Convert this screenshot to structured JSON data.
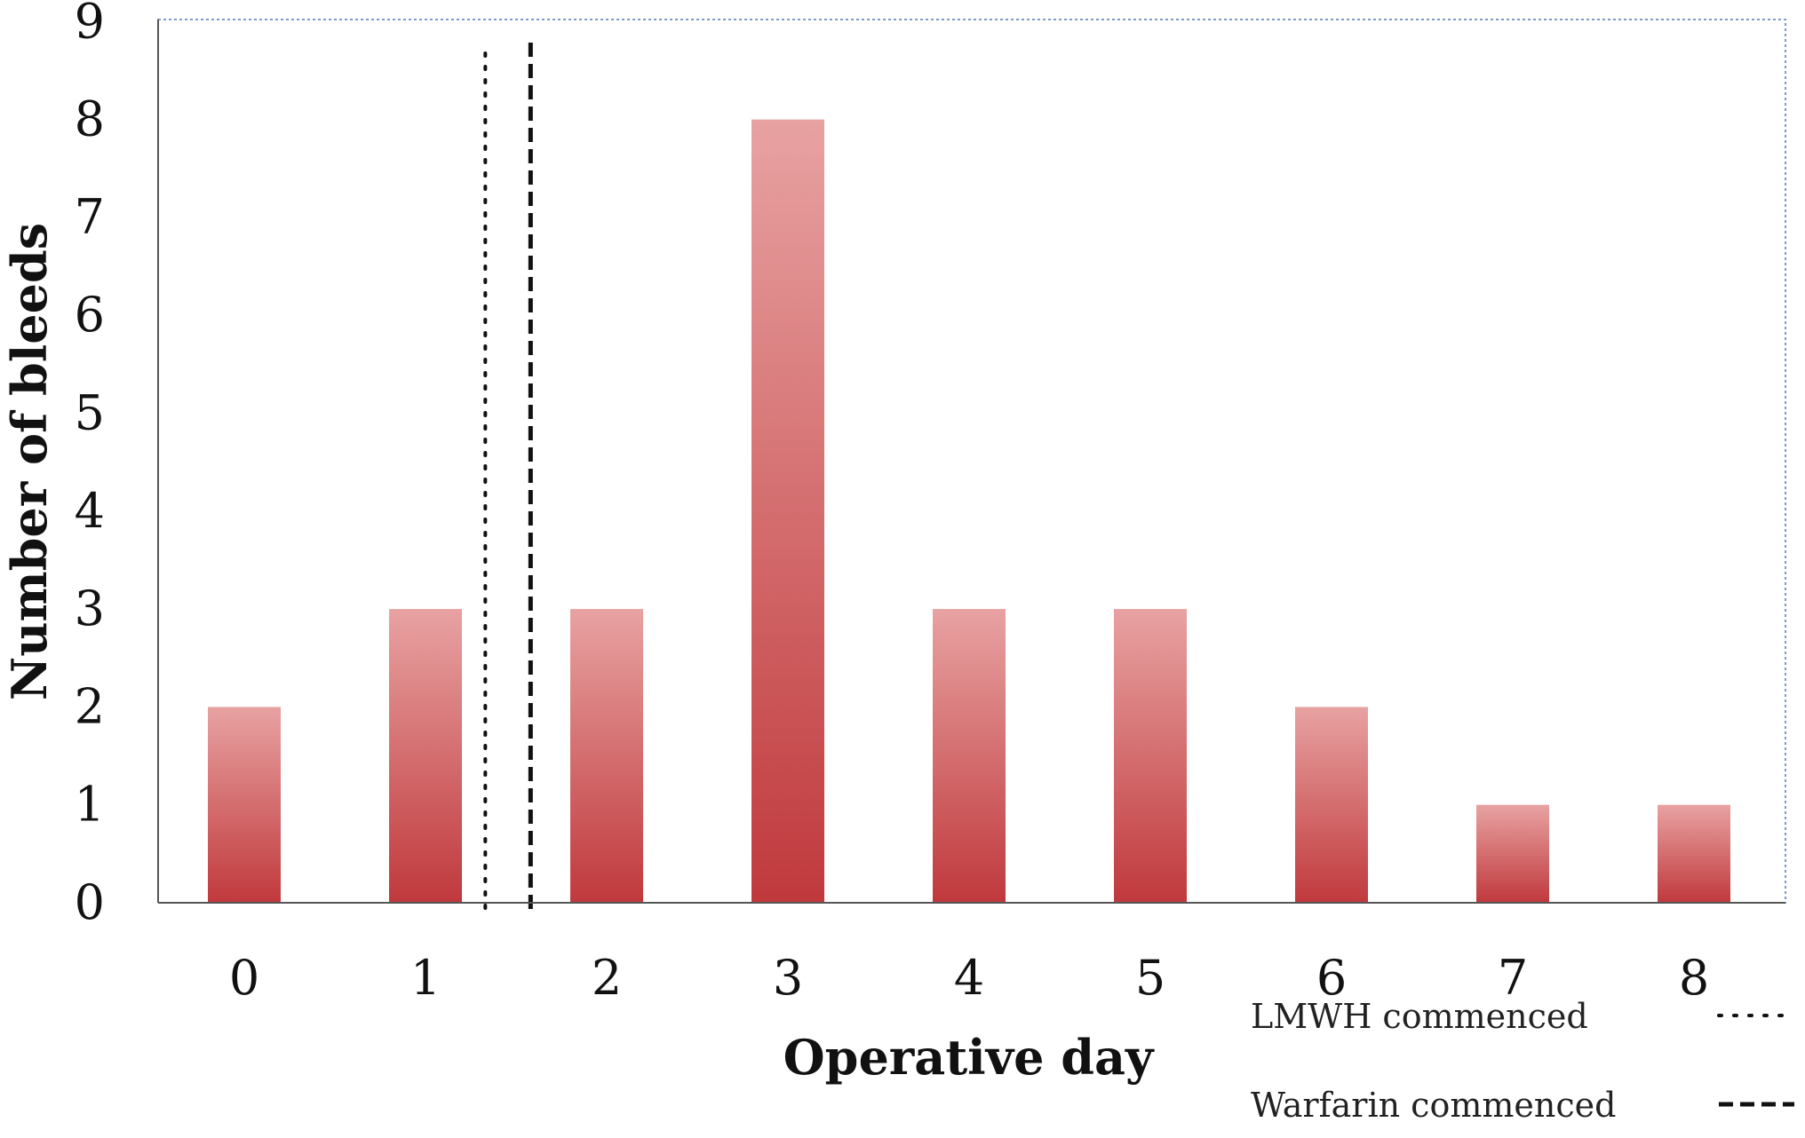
{
  "chart_data": {
    "type": "bar",
    "categories": [
      "0",
      "1",
      "2",
      "3",
      "4",
      "5",
      "6",
      "7",
      "8"
    ],
    "values": [
      2,
      3,
      3,
      8,
      3,
      3,
      2,
      1,
      1
    ],
    "xlabel": "Operative day",
    "ylabel": "Number of bleeds",
    "ylim": [
      0,
      9
    ],
    "yticks": [
      0,
      1,
      2,
      3,
      4,
      5,
      6,
      7,
      8,
      9
    ],
    "grid": false,
    "bar_color_top": "#e8a2a2",
    "bar_color_bottom": "#c0393c",
    "reference_lines": [
      {
        "label": "LMWH commenced",
        "x": 1.33,
        "style": "dotted"
      },
      {
        "label": "Warfarin commenced",
        "x": 1.58,
        "style": "dashed"
      }
    ],
    "legend": {
      "position": "bottom-right",
      "entries": [
        {
          "label": "LMWH commenced",
          "style": "dotted"
        },
        {
          "label": "Warfarin commenced",
          "style": "dashed"
        }
      ]
    }
  }
}
